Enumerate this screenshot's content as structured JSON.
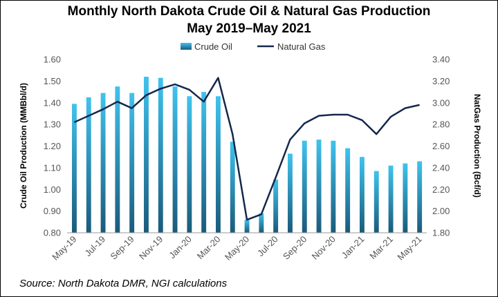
{
  "chart_data": {
    "type": "bar+line",
    "title_line1": "Monthly North Dakota Crude Oil & Natural Gas Production",
    "title_line2": "May 2019–May 2021",
    "source": "Source: North Dakota DMR, NGI calculations",
    "ylabel_left": "Crude Oil Production (MMBbl/d)",
    "ylabel_right": "NatGas Production (Bcf/d)",
    "ylim_left": [
      0.8,
      1.6
    ],
    "ylim_right": [
      1.8,
      3.4
    ],
    "yticks_left": [
      "0.80",
      "0.90",
      "1.00",
      "1.10",
      "1.20",
      "1.30",
      "1.40",
      "1.50",
      "1.60"
    ],
    "yticks_right": [
      "1.80",
      "2.00",
      "2.20",
      "2.40",
      "2.60",
      "2.80",
      "3.00",
      "3.20",
      "3.40"
    ],
    "categories": [
      "May-19",
      "Jun-19",
      "Jul-19",
      "Aug-19",
      "Sep-19",
      "Oct-19",
      "Nov-19",
      "Dec-19",
      "Jan-20",
      "Feb-20",
      "Mar-20",
      "Apr-20",
      "May-20",
      "Jun-20",
      "Jul-20",
      "Aug-20",
      "Sep-20",
      "Oct-20",
      "Nov-20",
      "Dec-20",
      "Jan-21",
      "Feb-21",
      "Mar-21",
      "Apr-21",
      "May-21"
    ],
    "xtick_labels": [
      "May-19",
      "Jul-19",
      "Sep-19",
      "Nov-19",
      "Jan-20",
      "Mar-20",
      "May-20",
      "Jul-20",
      "Sep-20",
      "Nov-20",
      "Jan-21",
      "Mar-21",
      "May-21"
    ],
    "series": [
      {
        "name": "Crude Oil",
        "type": "bar",
        "axis": "left",
        "color_top": "#3fc3ee",
        "color_bottom": "#1a5a7a",
        "values": [
          1.395,
          1.425,
          1.445,
          1.475,
          1.445,
          1.52,
          1.515,
          1.475,
          1.43,
          1.45,
          1.43,
          1.22,
          0.86,
          0.89,
          1.045,
          1.165,
          1.225,
          1.23,
          1.225,
          1.19,
          1.15,
          1.085,
          1.11,
          1.12,
          1.13
        ]
      },
      {
        "name": "Natural Gas",
        "type": "line",
        "axis": "right",
        "color": "#14284b",
        "values": [
          2.82,
          2.88,
          2.94,
          3.01,
          2.95,
          3.07,
          3.13,
          3.17,
          3.12,
          3.01,
          3.23,
          2.71,
          1.92,
          1.97,
          2.31,
          2.66,
          2.81,
          2.88,
          2.89,
          2.89,
          2.84,
          2.71,
          2.87,
          2.95,
          2.98
        ]
      }
    ],
    "legend": [
      "Crude Oil",
      "Natural Gas"
    ],
    "legend_position": "top-center",
    "grid": false
  }
}
